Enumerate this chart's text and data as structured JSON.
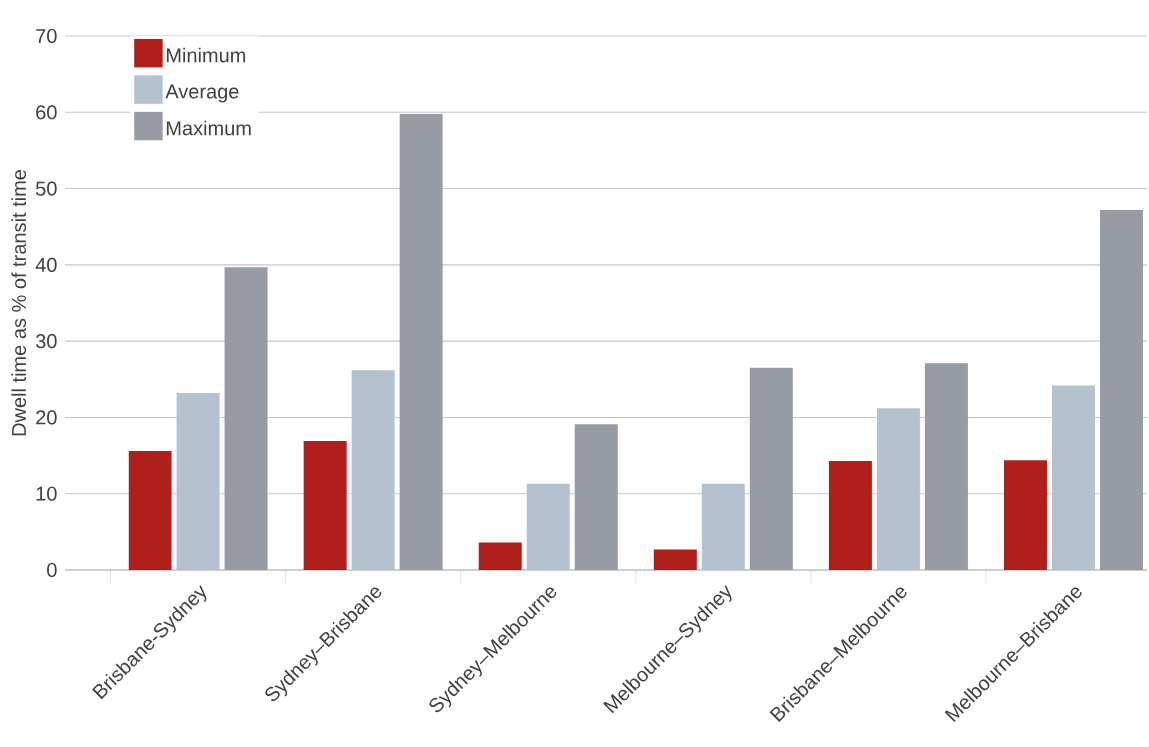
{
  "chart_data": {
    "type": "bar",
    "ylabel": "Dwell time as % of transit time",
    "categories": [
      "Brisbane-Sydney",
      "Sydney–Brisbane",
      "Sydney–Melbourne",
      "Melbourne–Sydney",
      "Brisbane–Melbourne",
      "Melbourne–Brisbane"
    ],
    "series": [
      {
        "name": "Minimum",
        "color": "#b01f1a",
        "values": [
          15.6,
          16.9,
          3.6,
          2.7,
          14.3,
          14.4
        ]
      },
      {
        "name": "Average",
        "color": "#b4c2cf",
        "values": [
          23.2,
          26.2,
          11.3,
          11.3,
          21.2,
          24.2
        ]
      },
      {
        "name": "Maximum",
        "color": "#979ba3",
        "values": [
          39.7,
          59.8,
          19.1,
          26.5,
          27.1,
          47.2
        ]
      }
    ],
    "ylim": [
      0,
      70
    ],
    "yticks": [
      0,
      10,
      20,
      30,
      40,
      50,
      60,
      70
    ],
    "grid": "y",
    "legend": "top left"
  }
}
